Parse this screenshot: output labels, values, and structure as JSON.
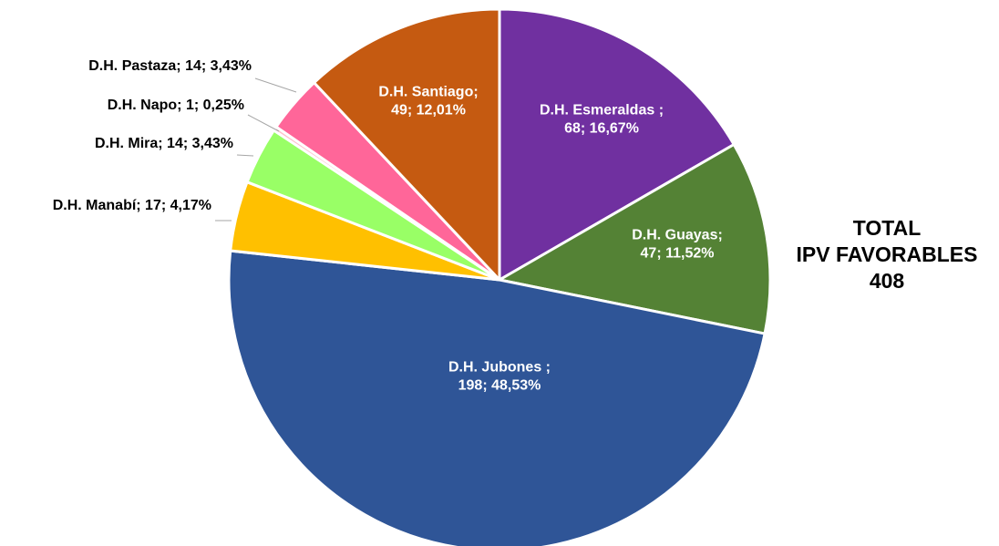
{
  "chart_data": {
    "type": "pie",
    "start_angle_deg": 0,
    "direction": "clockwise",
    "slices": [
      {
        "name": "D.H. Esmeraldas",
        "value": 68,
        "percent": "16,67%",
        "color": "#7030a0",
        "label_color": "#ffffff",
        "label_position": "inside"
      },
      {
        "name": "D.H. Guayas",
        "value": 47,
        "percent": "11,52%",
        "color": "#548235",
        "label_color": "#ffffff",
        "label_position": "inside"
      },
      {
        "name": "D.H. Jubones",
        "value": 198,
        "percent": "48,53%",
        "color": "#2f5597",
        "label_color": "#ffffff",
        "label_position": "inside"
      },
      {
        "name": "D.H. Manabí",
        "value": 17,
        "percent": "4,17%",
        "color": "#ffc000",
        "label_color": "#000000",
        "label_position": "outside"
      },
      {
        "name": "D.H. Mira",
        "value": 14,
        "percent": "3,43%",
        "color": "#99ff66",
        "label_color": "#000000",
        "label_position": "outside"
      },
      {
        "name": "D.H. Napo",
        "value": 1,
        "percent": "0,25%",
        "color": "#ffc0cb",
        "label_color": "#000000",
        "label_position": "outside"
      },
      {
        "name": "D.H. Pastaza",
        "value": 14,
        "percent": "3,43%",
        "color": "#ff6699",
        "label_color": "#000000",
        "label_position": "outside"
      },
      {
        "name": "D.H. Santiago",
        "value": 49,
        "percent": "12,01%",
        "color": "#c55a11",
        "label_color": "#ffffff",
        "label_position": "inside"
      }
    ],
    "labels": [
      {
        "lines": [
          "D.H. Esmeraldas ;",
          "68; 16,67%"
        ]
      },
      {
        "lines": [
          "D.H. Guayas;",
          "47; 11,52%"
        ]
      },
      {
        "lines": [
          "D.H. Jubones ;",
          "198; 48,53%"
        ]
      },
      {
        "lines": [
          "D.H. Manabí; 17; 4,17%"
        ]
      },
      {
        "lines": [
          "D.H. Mira; 14; 3,43%"
        ]
      },
      {
        "lines": [
          "D.H. Napo; 1; 0,25%"
        ]
      },
      {
        "lines": [
          "D.H. Pastaza; 14; 3,43%"
        ]
      },
      {
        "lines": [
          "D.H. Santiago;",
          "49; 12,01%"
        ]
      }
    ],
    "total": {
      "line1": "TOTAL",
      "line2": "IPV FAVORABLES",
      "line3": "408"
    }
  }
}
